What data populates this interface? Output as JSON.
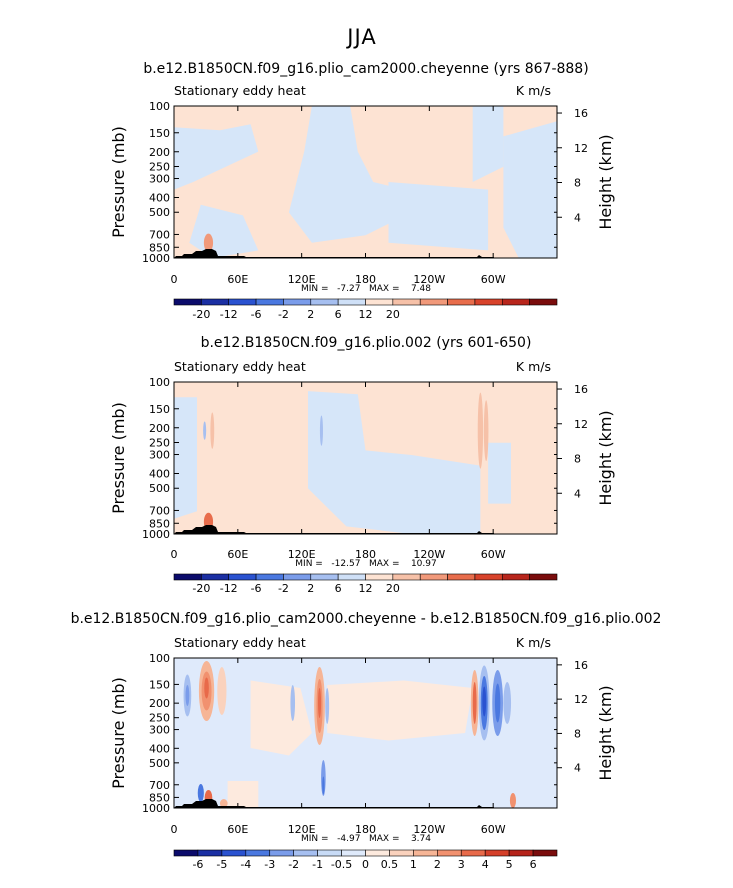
{
  "chart_data": {
    "type": "heatmap",
    "title": "JJA",
    "panels": [
      {
        "title": "b.e12.B1850CN.f09_g16.plio_cam2000.cheyenne (yrs 867-888)",
        "left_label": "Stationary eddy heat",
        "right_label": "K m/s",
        "ylabel": "Pressure (mb)",
        "ylabel_right": "Height (km)",
        "pressure_ticks": [
          "100",
          "150",
          "200",
          "250",
          "300",
          "400",
          "500",
          "700",
          "850",
          "1000"
        ],
        "height_ticks": [
          "4",
          "8",
          "12",
          "16"
        ],
        "lon_ticks": [
          "0",
          "60E",
          "120E",
          "180",
          "120W",
          "60W"
        ],
        "stats": "MIN =   -7.27   MAX =    7.48",
        "colorbar_labels": [
          "-20",
          "-12",
          "-6",
          "-2",
          "2",
          "6",
          "12",
          "20"
        ]
      },
      {
        "title": "b.e12.B1850CN.f09_g16.plio.002 (yrs 601-650)",
        "left_label": "Stationary eddy heat",
        "right_label": "K m/s",
        "ylabel": "Pressure (mb)",
        "ylabel_right": "Height (km)",
        "pressure_ticks": [
          "100",
          "150",
          "200",
          "250",
          "300",
          "400",
          "500",
          "700",
          "850",
          "1000"
        ],
        "height_ticks": [
          "4",
          "8",
          "12",
          "16"
        ],
        "lon_ticks": [
          "0",
          "60E",
          "120E",
          "180",
          "120W",
          "60W"
        ],
        "stats": "MIN =   -12.57   MAX =    10.97",
        "colorbar_labels": [
          "-20",
          "-12",
          "-6",
          "-2",
          "2",
          "6",
          "12",
          "20"
        ]
      },
      {
        "title": "b.e12.B1850CN.f09_g16.plio_cam2000.cheyenne - b.e12.B1850CN.f09_g16.plio.002",
        "left_label": "Stationary eddy heat",
        "right_label": "K m/s",
        "ylabel": "Pressure (mb)",
        "ylabel_right": "Height (km)",
        "pressure_ticks": [
          "100",
          "150",
          "200",
          "250",
          "300",
          "400",
          "500",
          "700",
          "850",
          "1000"
        ],
        "height_ticks": [
          "4",
          "8",
          "12",
          "16"
        ],
        "lon_ticks": [
          "0",
          "60E",
          "120E",
          "180",
          "120W",
          "60W"
        ],
        "stats": "MIN =   -4.97   MAX =    3.74",
        "colorbar_labels": [
          "-6",
          "-5",
          "-4",
          "-3",
          "-2",
          "-1",
          "-0.5",
          "0",
          "0.5",
          "1",
          "2",
          "3",
          "4",
          "5",
          "6"
        ]
      }
    ],
    "colorbar_colors": [
      "#0b0b6b",
      "#1b2fa3",
      "#2a52d0",
      "#4a78e0",
      "#7a9cea",
      "#a6bff0",
      "#cfe0f7",
      "#fde3d3",
      "#f6c1a8",
      "#f1997a",
      "#e86d4c",
      "#d8432b",
      "#b8261c",
      "#7a0c0c"
    ],
    "colorbar_colors_diff": [
      "#0b0b6b",
      "#1b2fa3",
      "#2a52d0",
      "#4a78e0",
      "#7a9cea",
      "#a6bff0",
      "#c8dbf6",
      "#dfeafb",
      "#fdeade",
      "#fad2bd",
      "#f6b596",
      "#f1916f",
      "#e86a4a",
      "#d5402a",
      "#b5231a",
      "#7a0c0c"
    ]
  }
}
